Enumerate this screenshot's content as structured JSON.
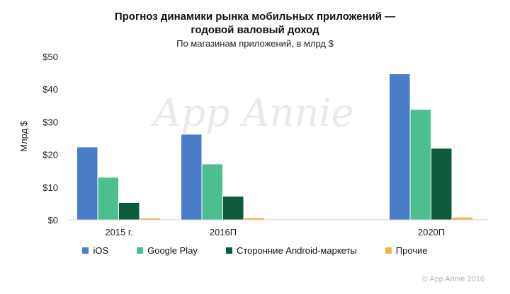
{
  "title_line1": "Прогноз динамики рынка мобильных приложений —",
  "title_line2": "годовой валовый доход",
  "subtitle": "По магазинам приложений, в млрд $",
  "watermark": "App Annie",
  "copyright": "© App Annie 2016",
  "chart_data": {
    "type": "bar",
    "title": "Прогноз динамики рынка мобильных приложений — годовой валовый доход",
    "subtitle": "По магазинам приложений, в млрд $",
    "xlabel": "",
    "ylabel": "Млрд $",
    "categories": [
      "2015 г.",
      "2016П",
      "2020П"
    ],
    "ylim": [
      0,
      50
    ],
    "yticks": [
      0,
      10,
      20,
      30,
      40,
      50
    ],
    "ytick_labels": [
      "$0",
      "$10",
      "$20",
      "$30",
      "$40",
      "$50"
    ],
    "legend_position": "bottom",
    "grid": false,
    "series": [
      {
        "name": "iOS",
        "color": "#4a7cc8",
        "values": [
          22.2,
          26.1,
          44.6
        ]
      },
      {
        "name": "Google Play",
        "color": "#4dbe8f",
        "values": [
          12.9,
          17.0,
          33.7
        ]
      },
      {
        "name": "Сторонние Android-маркеты",
        "color": "#0e5a3c",
        "values": [
          5.2,
          7.1,
          21.8
        ]
      },
      {
        "name": "Прочие",
        "color": "#f0b54a",
        "values": [
          0.4,
          0.5,
          0.7
        ]
      }
    ]
  }
}
